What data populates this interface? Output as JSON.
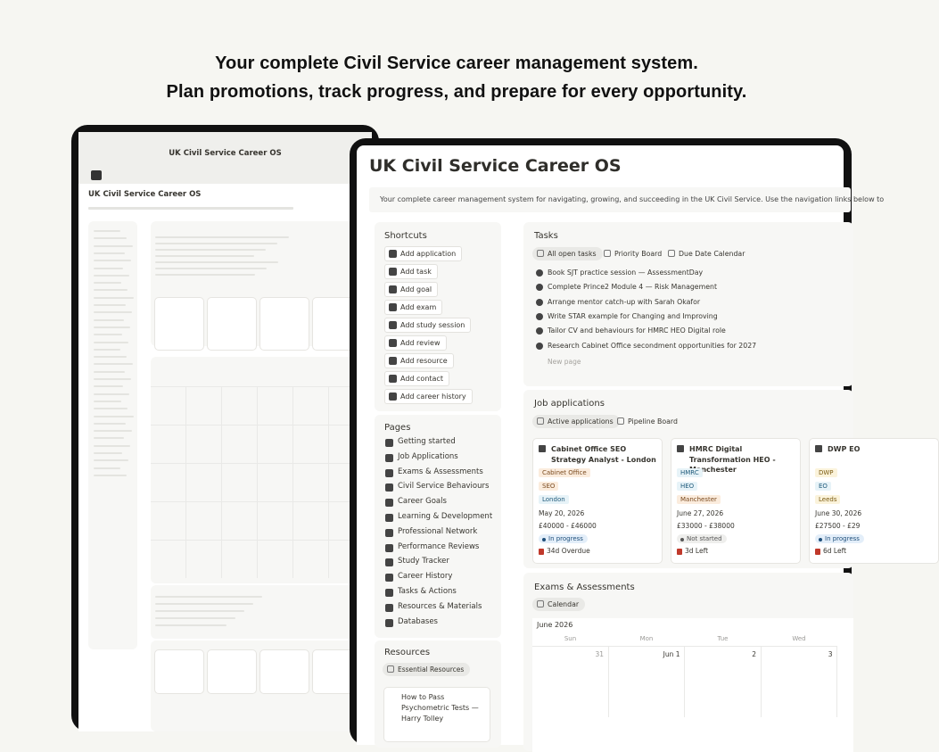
{
  "headline": {
    "line1": "Your complete Civil Service career management system.",
    "line2": "Plan promotions, track progress, and prepare for every opportunity."
  },
  "back_device": {
    "banner_title": "UK Civil Service Career OS",
    "title": "UK Civil Service Career OS"
  },
  "front_device": {
    "title": "UK Civil Service Career OS",
    "intro": "Your complete career management system for navigating, growing, and succeeding in the UK Civil Service. Use the navigation links below to",
    "shortcuts": {
      "title": "Shortcuts",
      "items": [
        "Add application",
        "Add task",
        "Add goal",
        "Add exam",
        "Add study session",
        "Add review",
        "Add resource",
        "Add contact",
        "Add career history"
      ]
    },
    "pages": {
      "title": "Pages",
      "items": [
        "Getting started",
        "Job Applications",
        "Exams & Assessments",
        "Civil Service Behaviours",
        "Career Goals",
        "Learning & Development",
        "Professional Network",
        "Performance Reviews",
        "Study Tracker",
        "Career History",
        "Tasks & Actions",
        "Resources & Materials",
        "Databases"
      ]
    },
    "resources": {
      "title": "Resources",
      "filter": "Essential Resources",
      "items": [
        "How to Pass Psychometric Tests — Harry Tolley"
      ]
    },
    "tasks": {
      "title": "Tasks",
      "tabs": [
        "All open tasks",
        "Priority Board",
        "Due Date Calendar"
      ],
      "items": [
        "Book SJT practice session — AssessmentDay",
        "Complete Prince2 Module 4 — Risk Management",
        "Arrange mentor catch-up with Sarah Okafor",
        "Write STAR example for Changing and Improving",
        "Tailor CV and behaviours for HMRC HEO Digital role",
        "Research Cabinet Office secondment opportunities for 2027"
      ],
      "new_page": "New page"
    },
    "job_applications": {
      "title": "Job applications",
      "tabs": [
        "Active applications",
        "Pipeline Board"
      ],
      "cards": [
        {
          "title": "Cabinet Office SEO Strategy Analyst - London",
          "tags": [
            "Cabinet Office",
            "SEO",
            "London"
          ],
          "date": "May 20, 2026",
          "salary": "£40000 - £46000",
          "status": "In progress",
          "due": "34d Overdue"
        },
        {
          "title": "HMRC Digital Transformation HEO - Manchester",
          "tags": [
            "HMRC",
            "HEO",
            "Manchester"
          ],
          "date": "June 27, 2026",
          "salary": "£33000 - £38000",
          "status": "Not started",
          "due": "3d Left"
        },
        {
          "title": "DWP EO",
          "tags": [
            "DWP",
            "EO",
            "Leeds"
          ],
          "date": "June 30, 2026",
          "salary": "£27500 - £29",
          "status": "In progress",
          "due": "6d Left"
        }
      ]
    },
    "exams": {
      "title": "Exams & Assessments",
      "tab": "Calendar",
      "month": "June 2026",
      "weekdays": [
        "Sun",
        "Mon",
        "Tue",
        "Wed"
      ],
      "dates": [
        "31",
        "Jun 1",
        "2",
        "3"
      ]
    }
  }
}
